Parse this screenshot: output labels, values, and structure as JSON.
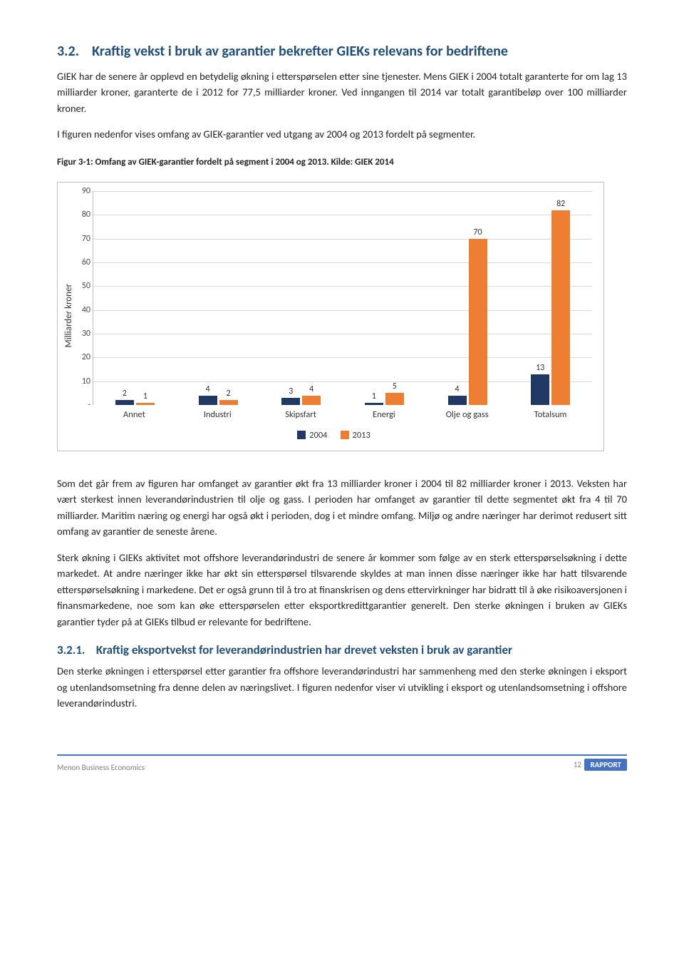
{
  "colors": {
    "heading": "#1f4e79",
    "series_a": "#203864",
    "series_b": "#ed7d31",
    "grid": "#d9d9d9",
    "border": "#bfbfbf",
    "footer_accent": "#4472c4"
  },
  "section_number": "3.2.",
  "section_title": "Kraftig vekst i bruk av garantier bekrefter GIEKs relevans for bedriftene",
  "p1": "GIEK har de senere år opplevd en betydelig økning i etterspørselen etter sine tjenester. Mens GIEK i 2004 totalt garanterte for om lag 13 milliarder kroner, garanterte de i 2012 for 77,5 milliarder kroner. Ved inngangen til 2014 var totalt garantibeløp over 100 milliarder kroner.",
  "p2": "I figuren nedenfor vises omfang av GIEK-garantier ved utgang av 2004 og 2013 fordelt på segmenter.",
  "fig_caption": "Figur 3-1: Omfang av GIEK-garantier fordelt på segment i 2004 og 2013. Kilde: GIEK 2014",
  "chart": {
    "ylabel": "Milliarder kroner",
    "ymin": 0,
    "ymax": 90,
    "ystep": 10,
    "categories": [
      "Annet",
      "Industri",
      "Skipsfart",
      "Energi",
      "Olje og gass",
      "Totalsum"
    ],
    "series": [
      {
        "name": "2004",
        "color": "#203864",
        "values": [
          2,
          4,
          3,
          1,
          4,
          13
        ]
      },
      {
        "name": "2013",
        "color": "#ed7d31",
        "values": [
          1,
          2,
          4,
          5,
          70,
          82
        ]
      }
    ],
    "show_dash_ytick": true
  },
  "p3": "Som det går frem av figuren har omfanget av garantier økt fra 13 milliarder kroner i 2004 til 82 milliarder kroner i 2013. Veksten har vært sterkest innen leverandørindustrien til olje og gass. I perioden har omfanget av garantier til dette segmentet økt fra 4 til 70 milliarder. Maritim næring og energi har også økt i perioden, dog i et mindre omfang. Miljø og andre næringer har derimot redusert sitt omfang av garantier de seneste årene.",
  "p4": "Sterk økning i GIEKs aktivitet mot offshore leverandørindustri de senere år kommer som følge av en sterk etterspørselsøkning i dette markedet. At andre næringer ikke har økt sin etterspørsel tilsvarende skyldes at man innen disse næringer ikke har hatt tilsvarende etterspørselsøkning i markedene. Det er også grunn til å tro at finanskrisen og dens ettervirkninger har bidratt til å øke risikoaversjonen i finansmarkedene, noe som kan øke etterspørselen etter eksportkredittgarantier generelt. Den sterke økningen i bruken av GIEKs garantier tyder på at GIEKs tilbud er relevante for bedriftene.",
  "sub_number": "3.2.1.",
  "sub_title": "Kraftig eksportvekst for leverandørindustrien har drevet veksten i bruk av garantier",
  "p5": "Den sterke økningen i etterspørsel etter garantier fra offshore leverandørindustri har sammenheng med den sterke økningen i eksport og utenlandsomsetning fra denne delen av næringslivet. I figuren nedenfor viser vi utvikling i eksport og utenlandsomsetning i offshore leverandørindustri.",
  "footer": {
    "left": "Menon Business Economics",
    "page": "12",
    "badge": "RAPPORT"
  }
}
